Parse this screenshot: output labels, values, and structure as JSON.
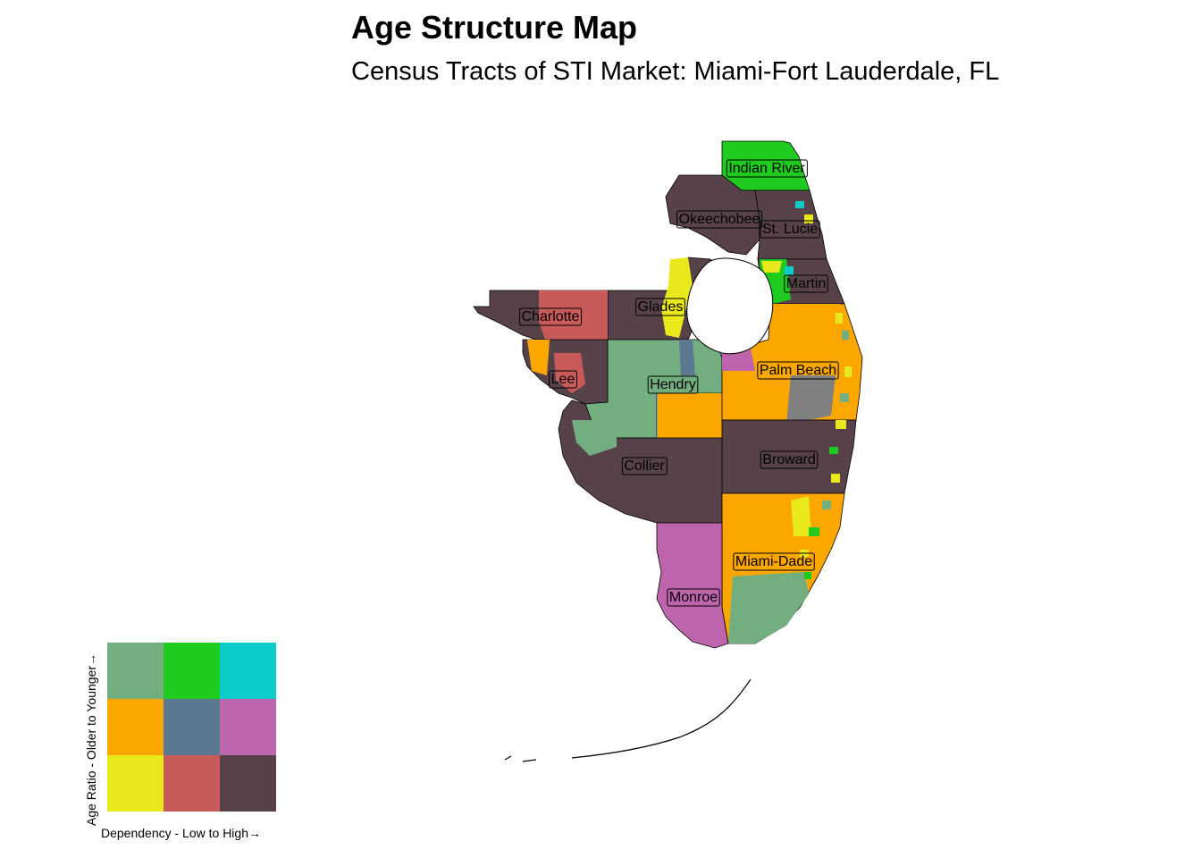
{
  "title": "Age Structure Map",
  "subtitle": "Census Tracts of STI Market: Miami-Fort Lauderdale, FL",
  "legend": {
    "x_label": "Dependency - Low to High→",
    "y_label": "Age Ratio - Older to Younger→",
    "rows": [
      [
        "#73ae80",
        "#1fcb1f",
        "#0ccbc8"
      ],
      [
        "#fca700",
        "#5a7892",
        "#be64ac"
      ],
      [
        "#e8e81a",
        "#c85a5a",
        "#574249"
      ]
    ]
  },
  "counties": [
    {
      "name": "Indian River",
      "color": "#1fcb1f"
    },
    {
      "name": "Okeechobee",
      "color": "#574249"
    },
    {
      "name": "St. Lucie",
      "color": "#574249"
    },
    {
      "name": "Martin",
      "color": "#574249"
    },
    {
      "name": "Glades",
      "color": "#574249"
    },
    {
      "name": "Charlotte",
      "color": "#c85a5a"
    },
    {
      "name": "Lee",
      "color": "#574249"
    },
    {
      "name": "Hendry",
      "color": "#73ae80"
    },
    {
      "name": "Palm Beach",
      "color": "#fca700"
    },
    {
      "name": "Broward",
      "color": "#574249"
    },
    {
      "name": "Collier",
      "color": "#574249"
    },
    {
      "name": "Miami-Dade",
      "color": "#fca700"
    },
    {
      "name": "Monroe",
      "color": "#be64ac"
    }
  ]
}
